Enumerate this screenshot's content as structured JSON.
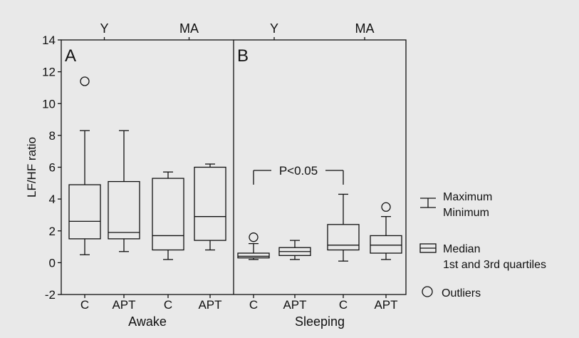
{
  "chart_data": {
    "type": "box",
    "ylabel": "LF/HF ratio",
    "ylim": [
      -2,
      14
    ],
    "yticks": [
      -2,
      0,
      2,
      4,
      6,
      8,
      10,
      12,
      14
    ],
    "panels": [
      {
        "letter": "A",
        "condition": "Awake",
        "top_groups": [
          "Y",
          "MA"
        ],
        "boxes": [
          {
            "category": "C",
            "group": "Y",
            "min": 0.5,
            "q1": 1.5,
            "median": 2.6,
            "q3": 4.9,
            "max": 8.3,
            "outliers": [
              11.4
            ]
          },
          {
            "category": "APT",
            "group": "Y",
            "min": 0.7,
            "q1": 1.5,
            "median": 1.9,
            "q3": 5.1,
            "max": 8.3,
            "outliers": []
          },
          {
            "category": "C",
            "group": "MA",
            "min": 0.2,
            "q1": 0.8,
            "median": 1.7,
            "q3": 5.3,
            "max": 5.7,
            "outliers": []
          },
          {
            "category": "APT",
            "group": "MA",
            "min": 0.8,
            "q1": 1.4,
            "median": 2.9,
            "q3": 6.0,
            "max": 6.2,
            "outliers": []
          }
        ]
      },
      {
        "letter": "B",
        "condition": "Sleeping",
        "top_groups": [
          "Y",
          "MA"
        ],
        "boxes": [
          {
            "category": "C",
            "group": "Y",
            "min": 0.2,
            "q1": 0.3,
            "median": 0.4,
            "q3": 0.6,
            "max": 1.2,
            "outliers": [
              1.6
            ]
          },
          {
            "category": "APT",
            "group": "Y",
            "min": 0.2,
            "q1": 0.45,
            "median": 0.7,
            "q3": 0.95,
            "max": 1.4,
            "outliers": []
          },
          {
            "category": "C",
            "group": "MA",
            "min": 0.1,
            "q1": 0.8,
            "median": 1.1,
            "q3": 2.4,
            "max": 4.3,
            "outliers": []
          },
          {
            "category": "APT",
            "group": "MA",
            "min": 0.2,
            "q1": 0.6,
            "median": 1.1,
            "q3": 1.7,
            "max": 2.9,
            "outliers": [
              3.5
            ]
          }
        ],
        "annotation": {
          "text": "P<0.05",
          "from_box": 0,
          "to_box": 2,
          "y": 5.8
        }
      }
    ],
    "legend": {
      "position": "right",
      "items": [
        {
          "symbol": "whisker",
          "lines": [
            "Maximum",
            "Minimum"
          ]
        },
        {
          "symbol": "box",
          "lines": [
            "Median",
            "1st and 3rd quartiles"
          ]
        },
        {
          "symbol": "circle",
          "lines": [
            "Outliers"
          ]
        }
      ]
    }
  }
}
